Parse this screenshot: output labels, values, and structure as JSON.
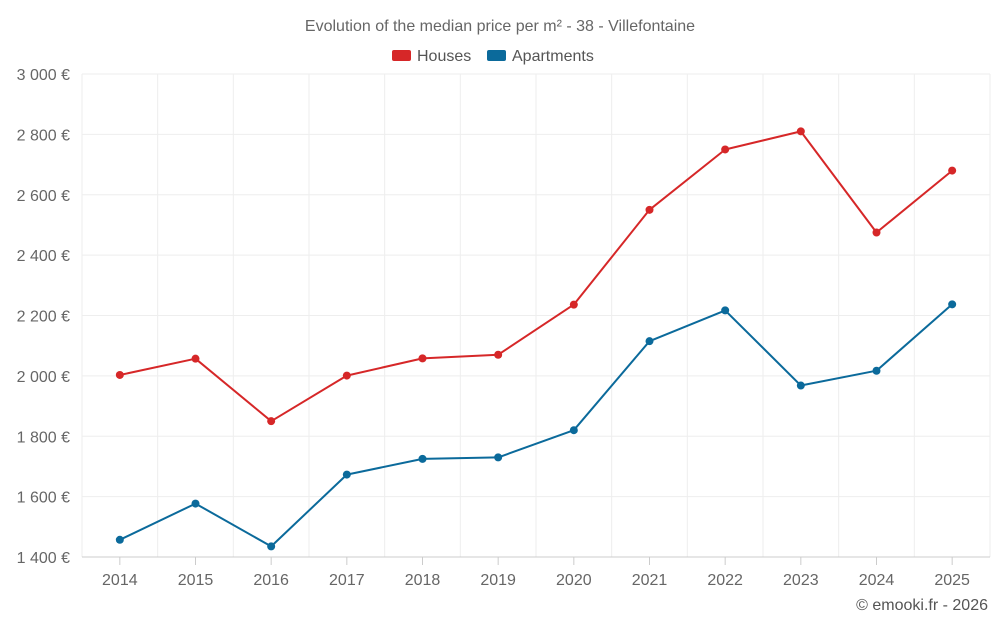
{
  "chart_data": {
    "type": "line",
    "title": "Evolution of the median price per m² - 38 - Villefontaine",
    "categories": [
      "2014",
      "2015",
      "2016",
      "2017",
      "2018",
      "2019",
      "2020",
      "2021",
      "2022",
      "2023",
      "2024",
      "2025"
    ],
    "series": [
      {
        "name": "Houses",
        "color": "#d62728",
        "values": [
          2003,
          2057,
          1850,
          2001,
          2058,
          2070,
          2236,
          2550,
          2750,
          2810,
          2475,
          2680
        ]
      },
      {
        "name": "Apartments",
        "color": "#0b6a9b",
        "values": [
          1457,
          1577,
          1435,
          1673,
          1725,
          1730,
          1820,
          2115,
          2217,
          1968,
          2017,
          2237
        ]
      }
    ],
    "ylim": [
      1400,
      3000
    ],
    "yticks": [
      1400,
      1600,
      1800,
      2000,
      2200,
      2400,
      2600,
      2800,
      3000
    ],
    "ytick_labels": [
      "1 400 €",
      "1 600 €",
      "1 800 €",
      "2 000 €",
      "2 200 €",
      "2 400 €",
      "2 600 €",
      "2 800 €",
      "3 000 €"
    ],
    "xlabel": "",
    "ylabel": "",
    "grid": true,
    "legend_position": "top-center"
  },
  "credit": "© emooki.fr - 2026"
}
